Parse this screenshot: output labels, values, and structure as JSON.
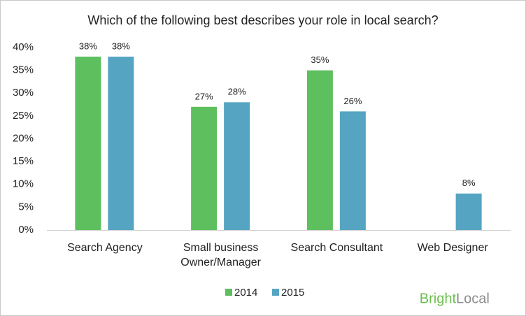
{
  "chart_data": {
    "type": "bar",
    "title": "Which of the following best describes your role in local search?",
    "categories": [
      "Search Agency",
      "Small business Owner/Manager",
      "Search Consultant",
      "Web Designer"
    ],
    "series": [
      {
        "name": "2014",
        "color": "#5dbf5d",
        "values": [
          38,
          27,
          35,
          null
        ],
        "value_labels": [
          "38%",
          "27%",
          "35%",
          null
        ]
      },
      {
        "name": "2015",
        "color": "#55a4c2",
        "values": [
          38,
          28,
          26,
          8
        ],
        "value_labels": [
          "38%",
          "28%",
          "26%",
          "8%"
        ]
      }
    ],
    "ylim": [
      0,
      40
    ],
    "yticks": [
      {
        "value": 0,
        "label": "0%"
      },
      {
        "value": 5,
        "label": "5%"
      },
      {
        "value": 10,
        "label": "10%"
      },
      {
        "value": 15,
        "label": "15%"
      },
      {
        "value": 20,
        "label": "20%"
      },
      {
        "value": 25,
        "label": "25%"
      },
      {
        "value": 30,
        "label": "30%"
      },
      {
        "value": 35,
        "label": "35%"
      },
      {
        "value": 40,
        "label": "40%"
      }
    ],
    "grid": false,
    "legend": "bottom",
    "watermark": [
      "Bright",
      "Local"
    ]
  }
}
